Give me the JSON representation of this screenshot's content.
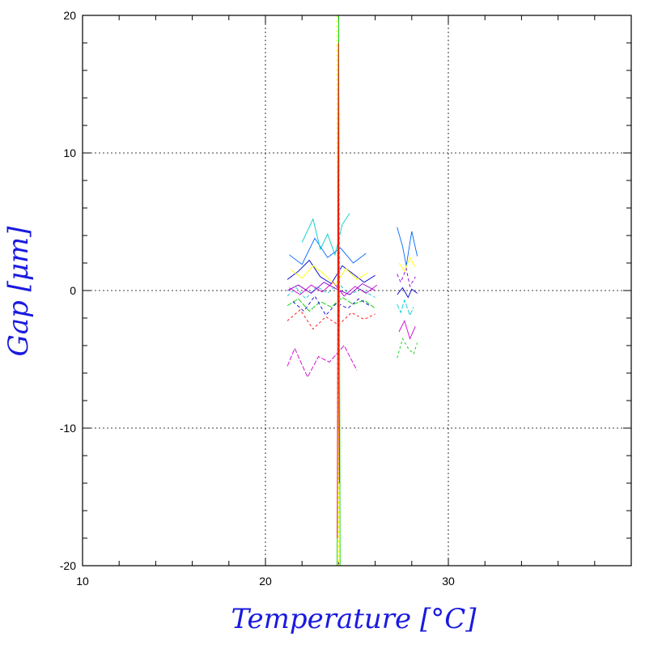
{
  "chart_data": {
    "type": "line",
    "title": "",
    "xlabel": "Temperature [°C]",
    "ylabel": "Gap [μm]",
    "xlim": [
      10,
      40
    ],
    "ylim": [
      -20,
      20
    ],
    "x_ticks": [
      10,
      20,
      30
    ],
    "y_ticks": [
      -20,
      -10,
      0,
      10,
      20
    ],
    "x_tick_labels": [
      "10",
      "20",
      "30"
    ],
    "y_tick_labels": [
      "-20",
      "-10",
      "0",
      "10",
      "20"
    ],
    "x_minor_step": 2,
    "y_minor_step": 2,
    "grid": true,
    "legend": "none",
    "series_colors": [
      "#0000cc",
      "#00cccc",
      "#cc00cc",
      "#00cc00",
      "#ffff00",
      "#ff0000",
      "#0066ff",
      "#8800cc"
    ],
    "series": [
      {
        "x": [
          21.2,
          21.8,
          22.4,
          23.0,
          23.6,
          24.2,
          24.8,
          25.4,
          26.0
        ],
        "y": [
          0.8,
          1.4,
          2.2,
          1.0,
          0.5,
          1.8,
          1.2,
          0.6,
          1.1
        ]
      },
      {
        "x": [
          21.2,
          21.7,
          22.2,
          22.8,
          23.4,
          24.0,
          24.6,
          25.2,
          26.0
        ],
        "y": [
          -0.4,
          0.2,
          -0.6,
          0.3,
          -0.2,
          0.5,
          -0.3,
          0.1,
          -0.5
        ]
      },
      {
        "x": [
          21.3,
          21.9,
          22.5,
          23.1,
          23.7,
          24.3,
          24.9,
          25.5,
          26.1
        ],
        "y": [
          0.2,
          -0.3,
          0.4,
          -0.1,
          0.6,
          -0.4,
          0.3,
          -0.2,
          0.4
        ]
      },
      {
        "x": [
          21.2,
          21.8,
          22.4,
          23.0,
          23.6,
          24.2,
          24.8,
          25.4,
          26.0
        ],
        "y": [
          -1.1,
          -0.6,
          -1.5,
          -0.8,
          -1.2,
          -0.5,
          -1.0,
          -0.7,
          -1.3
        ]
      },
      {
        "x": [
          21.4,
          22.0,
          22.6,
          23.2,
          23.8,
          24.4,
          25.0,
          25.6
        ],
        "y": [
          1.5,
          0.9,
          1.8,
          1.2,
          0.4,
          1.6,
          0.8,
          1.3
        ]
      },
      {
        "x": [
          21.2,
          21.9,
          22.6,
          23.3,
          24.0,
          24.7,
          25.4,
          26.0
        ],
        "y": [
          -2.2,
          -1.4,
          -2.8,
          -1.9,
          -2.5,
          -1.6,
          -2.1,
          -1.7
        ]
      },
      {
        "x": [
          21.3,
          22.0,
          22.7,
          23.4,
          24.1,
          24.8,
          25.5
        ],
        "y": [
          2.6,
          1.9,
          3.8,
          2.4,
          3.1,
          2.0,
          2.7
        ]
      },
      {
        "x": [
          21.2,
          21.8,
          22.5,
          23.2,
          23.9,
          24.6,
          25.3,
          26.0
        ],
        "y": [
          0.0,
          0.4,
          -0.2,
          0.6,
          0.1,
          -0.3,
          0.5,
          0.0
        ]
      },
      {
        "x": [
          21.5,
          22.1,
          22.7,
          23.3,
          23.9,
          24.5,
          25.1,
          25.7
        ],
        "y": [
          -0.8,
          -1.5,
          -0.4,
          -1.8,
          -0.9,
          -1.3,
          -0.6,
          -1.1
        ]
      },
      {
        "x": [
          22.0,
          22.6,
          23.0,
          23.4,
          23.8,
          24.2,
          24.6
        ],
        "y": [
          3.5,
          5.2,
          3.0,
          4.1,
          2.6,
          4.8,
          5.6
        ]
      },
      {
        "x": [
          21.2,
          21.6,
          22.3,
          22.9,
          23.5,
          24.3,
          25.0
        ],
        "y": [
          -5.5,
          -4.2,
          -6.3,
          -4.8,
          -5.2,
          -4.0,
          -5.8
        ]
      },
      {
        "x": [
          23.92,
          23.95,
          23.98,
          24.0,
          24.02,
          24.05,
          24.08
        ],
        "y": [
          -20.0,
          -10.0,
          0.0,
          20.0,
          10.0,
          0.0,
          -20.0
        ]
      },
      {
        "x": [
          23.9,
          23.94,
          23.97,
          24.0,
          24.03,
          24.06
        ],
        "y": [
          20.0,
          5.0,
          -8.0,
          -20.0,
          2.0,
          13.0
        ]
      },
      {
        "x": [
          23.93,
          23.96,
          23.99,
          24.01,
          24.04
        ],
        "y": [
          -18.0,
          6.0,
          18.0,
          -6.0,
          -14.0
        ]
      },
      {
        "x": [
          27.2,
          27.5,
          27.7,
          28.0,
          28.3
        ],
        "y": [
          4.6,
          3.2,
          1.8,
          4.3,
          2.5
        ]
      },
      {
        "x": [
          27.2,
          27.4,
          27.7,
          27.9,
          28.2
        ],
        "y": [
          1.2,
          0.6,
          1.6,
          0.3,
          1.0
        ]
      },
      {
        "x": [
          27.2,
          27.5,
          27.8,
          28.0,
          28.3
        ],
        "y": [
          -0.3,
          0.2,
          -0.5,
          0.1,
          -0.2
        ]
      },
      {
        "x": [
          27.2,
          27.4,
          27.6,
          27.9,
          28.1
        ],
        "y": [
          -1.0,
          -1.6,
          -0.7,
          -1.8,
          -1.2
        ]
      },
      {
        "x": [
          27.3,
          27.6,
          27.9,
          28.2
        ],
        "y": [
          -3.0,
          -2.2,
          -3.5,
          -2.6
        ]
      },
      {
        "x": [
          27.2,
          27.5,
          27.8,
          28.1,
          28.3
        ],
        "y": [
          -4.9,
          -3.5,
          -4.2,
          -4.6,
          -3.8
        ]
      },
      {
        "x": [
          27.3,
          27.6,
          27.9,
          28.2
        ],
        "y": [
          2.0,
          1.4,
          2.4,
          1.7
        ]
      }
    ]
  }
}
